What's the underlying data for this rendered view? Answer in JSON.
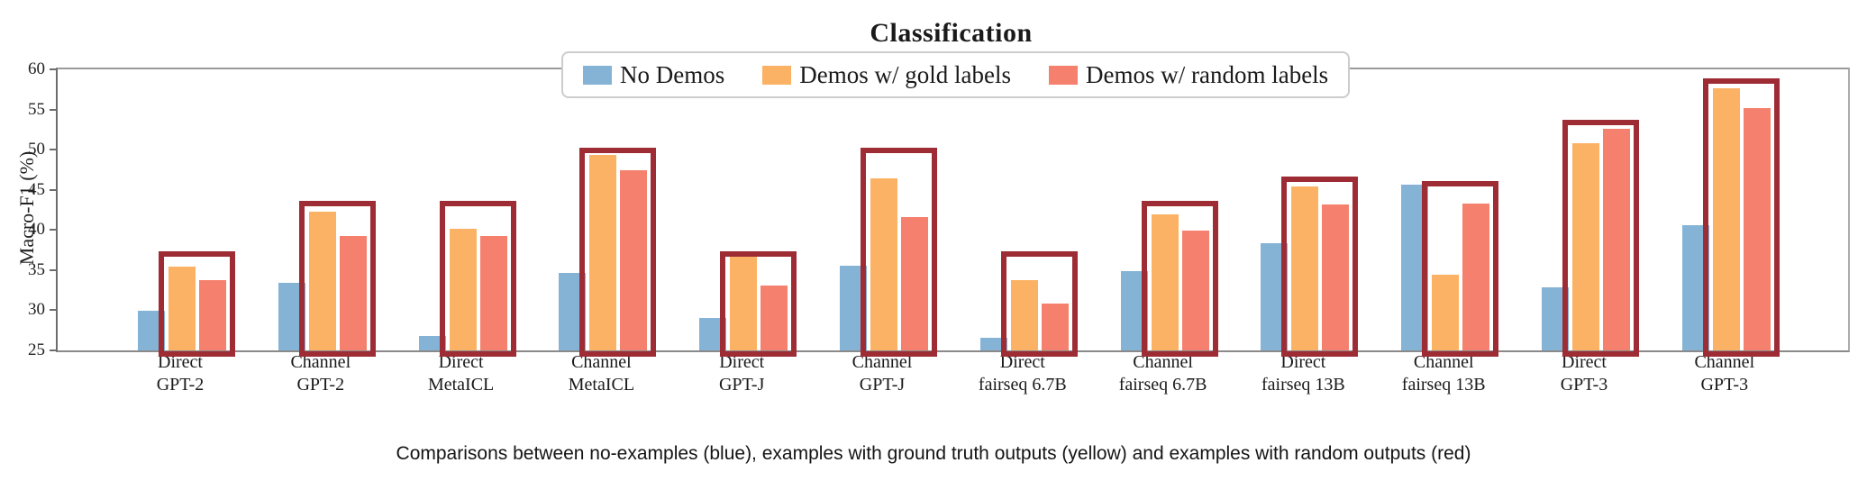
{
  "chart_data": {
    "type": "bar",
    "title": "Classification",
    "ylabel": "Macro-F1 (%)",
    "ylim": [
      25,
      60
    ],
    "yticks": [
      25,
      30,
      35,
      40,
      45,
      50,
      55,
      60
    ],
    "grid": false,
    "legend_position": "top-center",
    "categories": [
      {
        "line1": "Direct",
        "line2": "GPT-2"
      },
      {
        "line1": "Channel",
        "line2": "GPT-2"
      },
      {
        "line1": "Direct",
        "line2": "MetaICL"
      },
      {
        "line1": "Channel",
        "line2": "MetaICL"
      },
      {
        "line1": "Direct",
        "line2": "GPT-J"
      },
      {
        "line1": "Channel",
        "line2": "GPT-J"
      },
      {
        "line1": "Direct",
        "line2": "fairseq 6.7B"
      },
      {
        "line1": "Channel",
        "line2": "fairseq 6.7B"
      },
      {
        "line1": "Direct",
        "line2": "fairseq 13B"
      },
      {
        "line1": "Channel",
        "line2": "fairseq 13B"
      },
      {
        "line1": "Direct",
        "line2": "GPT-3"
      },
      {
        "line1": "Channel",
        "line2": "GPT-3"
      }
    ],
    "series": [
      {
        "name": "No Demos",
        "color": "#85b3d6",
        "values": [
          29.9,
          33.4,
          26.8,
          34.6,
          29.1,
          35.6,
          26.6,
          34.9,
          38.3,
          45.6,
          32.9,
          40.6
        ]
      },
      {
        "name": "Demos w/ gold labels",
        "color": "#fcb264",
        "values": [
          35.4,
          42.3,
          40.2,
          49.4,
          36.7,
          46.4,
          33.8,
          42.0,
          45.4,
          34.4,
          50.8,
          57.6
        ]
      },
      {
        "name": "Demos w/ random labels",
        "color": "#f5806d",
        "values": [
          33.8,
          39.2,
          39.2,
          47.4,
          33.1,
          41.6,
          30.8,
          39.9,
          43.2,
          43.3,
          52.6,
          55.2
        ]
      }
    ],
    "highlight_boxes": {
      "color": "#9e2c35",
      "encloses_series": [
        "Demos w/ gold labels",
        "Demos w/ random labels"
      ],
      "top_values": [
        37.3,
        43.6,
        43.6,
        50.3,
        37.4,
        50.3,
        37.3,
        43.6,
        46.7,
        46.1,
        53.7,
        58.9
      ]
    },
    "caption": "Comparisons between no-examples (blue), examples with ground truth outputs (yellow) and examples with random outputs (red)"
  }
}
